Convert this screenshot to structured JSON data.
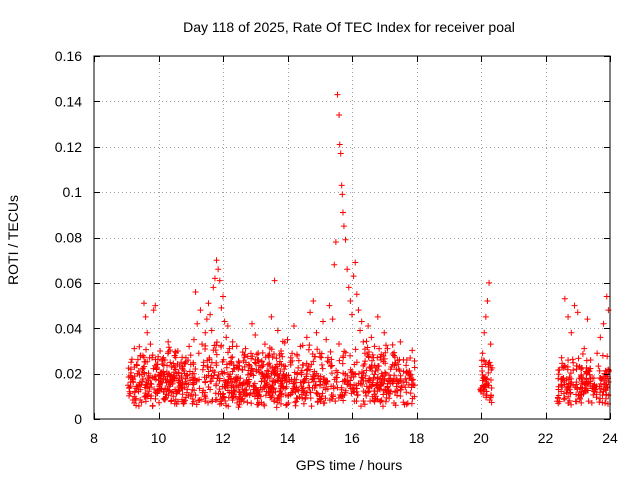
{
  "chart_data": {
    "type": "scatter",
    "title": "Day 118 of 2025, Rate Of TEC Index for receiver poal",
    "xlabel": "GPS time / hours",
    "ylabel": "ROTI / TECUs",
    "xlim": [
      8,
      24
    ],
    "ylim": [
      0,
      0.16
    ],
    "xticks": [
      8,
      10,
      12,
      14,
      16,
      18,
      20,
      22,
      24
    ],
    "yticks": [
      0,
      0.02,
      0.04,
      0.06,
      0.08,
      0.1,
      0.12,
      0.14,
      0.16
    ],
    "ytick_labels": [
      "0",
      "0.02",
      "0.04",
      "0.06",
      "0.08",
      "0.1",
      "0.12",
      "0.14",
      "0.16"
    ],
    "grid": true,
    "marker": "+",
    "color": "#ff0000",
    "series": [
      {
        "name": "ROTI",
        "points": [
          [
            9.1,
            0.012
          ],
          [
            9.15,
            0.025
          ],
          [
            9.2,
            0.018
          ],
          [
            9.25,
            0.031
          ],
          [
            9.3,
            0.009
          ],
          [
            9.35,
            0.02
          ],
          [
            9.4,
            0.015
          ],
          [
            9.45,
            0.028
          ],
          [
            9.5,
            0.022
          ],
          [
            9.55,
            0.051
          ],
          [
            9.6,
            0.045
          ],
          [
            9.65,
            0.038
          ],
          [
            9.7,
            0.019
          ],
          [
            9.75,
            0.033
          ],
          [
            9.8,
            0.027
          ],
          [
            9.85,
            0.048
          ],
          [
            9.9,
            0.05
          ],
          [
            9.95,
            0.024
          ],
          [
            10.0,
            0.017
          ],
          [
            10.05,
            0.03
          ],
          [
            10.1,
            0.013
          ],
          [
            10.15,
            0.021
          ],
          [
            10.2,
            0.026
          ],
          [
            10.25,
            0.016
          ],
          [
            10.3,
            0.034
          ],
          [
            10.35,
            0.019
          ],
          [
            10.4,
            0.023
          ],
          [
            10.45,
            0.012
          ],
          [
            10.5,
            0.028
          ],
          [
            10.55,
            0.02
          ],
          [
            10.6,
            0.03
          ],
          [
            10.65,
            0.018
          ],
          [
            10.7,
            0.025
          ],
          [
            10.75,
            0.022
          ],
          [
            10.8,
            0.014
          ],
          [
            10.85,
            0.027
          ],
          [
            10.9,
            0.019
          ],
          [
            10.95,
            0.032
          ],
          [
            11.0,
            0.024
          ],
          [
            11.05,
            0.02
          ],
          [
            11.1,
            0.035
          ],
          [
            11.15,
            0.056
          ],
          [
            11.2,
            0.042
          ],
          [
            11.25,
            0.029
          ],
          [
            11.3,
            0.048
          ],
          [
            11.35,
            0.033
          ],
          [
            11.4,
            0.025
          ],
          [
            11.45,
            0.038
          ],
          [
            11.5,
            0.044
          ],
          [
            11.55,
            0.051
          ],
          [
            11.6,
            0.046
          ],
          [
            11.65,
            0.039
          ],
          [
            11.7,
            0.058
          ],
          [
            11.75,
            0.062
          ],
          [
            11.8,
            0.07
          ],
          [
            11.85,
            0.066
          ],
          [
            11.9,
            0.061
          ],
          [
            11.95,
            0.049
          ],
          [
            12.0,
            0.054
          ],
          [
            12.05,
            0.043
          ],
          [
            12.1,
            0.036
          ],
          [
            12.15,
            0.041
          ],
          [
            12.2,
            0.031
          ],
          [
            12.25,
            0.027
          ],
          [
            12.3,
            0.034
          ],
          [
            12.35,
            0.022
          ],
          [
            12.4,
            0.018
          ],
          [
            12.5,
            0.012
          ],
          [
            12.6,
            0.009
          ],
          [
            12.7,
            0.031
          ],
          [
            12.8,
            0.024
          ],
          [
            12.9,
            0.042
          ],
          [
            13.0,
            0.037
          ],
          [
            13.1,
            0.026
          ],
          [
            13.2,
            0.02
          ],
          [
            13.3,
            0.033
          ],
          [
            13.4,
            0.028
          ],
          [
            13.5,
            0.045
          ],
          [
            13.6,
            0.061
          ],
          [
            13.7,
            0.039
          ],
          [
            13.8,
            0.03
          ],
          [
            13.9,
            0.022
          ],
          [
            14.0,
            0.035
          ],
          [
            14.1,
            0.027
          ],
          [
            14.2,
            0.041
          ],
          [
            14.3,
            0.02
          ],
          [
            14.4,
            0.032
          ],
          [
            14.5,
            0.016
          ],
          [
            14.6,
            0.036
          ],
          [
            14.7,
            0.047
          ],
          [
            14.8,
            0.052
          ],
          [
            14.9,
            0.038
          ],
          [
            15.0,
            0.029
          ],
          [
            15.1,
            0.043
          ],
          [
            15.2,
            0.035
          ],
          [
            15.3,
            0.05
          ],
          [
            15.4,
            0.044
          ],
          [
            15.45,
            0.068
          ],
          [
            15.5,
            0.078
          ],
          [
            15.55,
            0.143
          ],
          [
            15.6,
            0.134
          ],
          [
            15.62,
            0.121
          ],
          [
            15.65,
            0.117
          ],
          [
            15.68,
            0.103
          ],
          [
            15.7,
            0.099
          ],
          [
            15.72,
            0.091
          ],
          [
            15.75,
            0.085
          ],
          [
            15.8,
            0.079
          ],
          [
            15.85,
            0.066
          ],
          [
            15.9,
            0.058
          ],
          [
            15.95,
            0.052
          ],
          [
            16.0,
            0.046
          ],
          [
            16.05,
            0.063
          ],
          [
            16.1,
            0.069
          ],
          [
            16.15,
            0.055
          ],
          [
            16.2,
            0.048
          ],
          [
            16.25,
            0.039
          ],
          [
            16.3,
            0.043
          ],
          [
            16.35,
            0.034
          ],
          [
            16.4,
            0.029
          ],
          [
            16.5,
            0.041
          ],
          [
            16.6,
            0.036
          ],
          [
            16.7,
            0.032
          ],
          [
            16.8,
            0.045
          ],
          [
            16.9,
            0.026
          ],
          [
            17.0,
            0.038
          ],
          [
            17.1,
            0.031
          ],
          [
            17.2,
            0.022
          ],
          [
            17.3,
            0.028
          ],
          [
            17.4,
            0.017
          ],
          [
            17.5,
            0.034
          ],
          [
            17.6,
            0.021
          ],
          [
            17.7,
            0.026
          ],
          [
            17.8,
            0.019
          ],
          [
            17.9,
            0.015
          ],
          [
            20.0,
            0.012
          ],
          [
            20.05,
            0.029
          ],
          [
            20.1,
            0.038
          ],
          [
            20.15,
            0.045
          ],
          [
            20.2,
            0.052
          ],
          [
            20.25,
            0.06
          ],
          [
            20.3,
            0.033
          ],
          [
            22.4,
            0.013
          ],
          [
            22.5,
            0.027
          ],
          [
            22.6,
            0.053
          ],
          [
            22.7,
            0.045
          ],
          [
            22.8,
            0.038
          ],
          [
            22.9,
            0.05
          ],
          [
            23.0,
            0.047
          ],
          [
            23.1,
            0.022
          ],
          [
            23.2,
            0.031
          ],
          [
            23.3,
            0.044
          ],
          [
            23.4,
            0.026
          ],
          [
            23.5,
            0.018
          ],
          [
            23.6,
            0.029
          ],
          [
            23.7,
            0.036
          ],
          [
            23.8,
            0.042
          ],
          [
            23.9,
            0.054
          ],
          [
            23.95,
            0.048
          ]
        ]
      }
    ],
    "dense_bands": [
      {
        "x_range": [
          9.05,
          17.95
        ],
        "y_range": [
          0.005,
          0.035
        ]
      },
      {
        "x_range": [
          19.95,
          20.35
        ],
        "y_range": [
          0.006,
          0.03
        ]
      },
      {
        "x_range": [
          22.35,
          24.0
        ],
        "y_range": [
          0.006,
          0.03
        ]
      }
    ]
  }
}
